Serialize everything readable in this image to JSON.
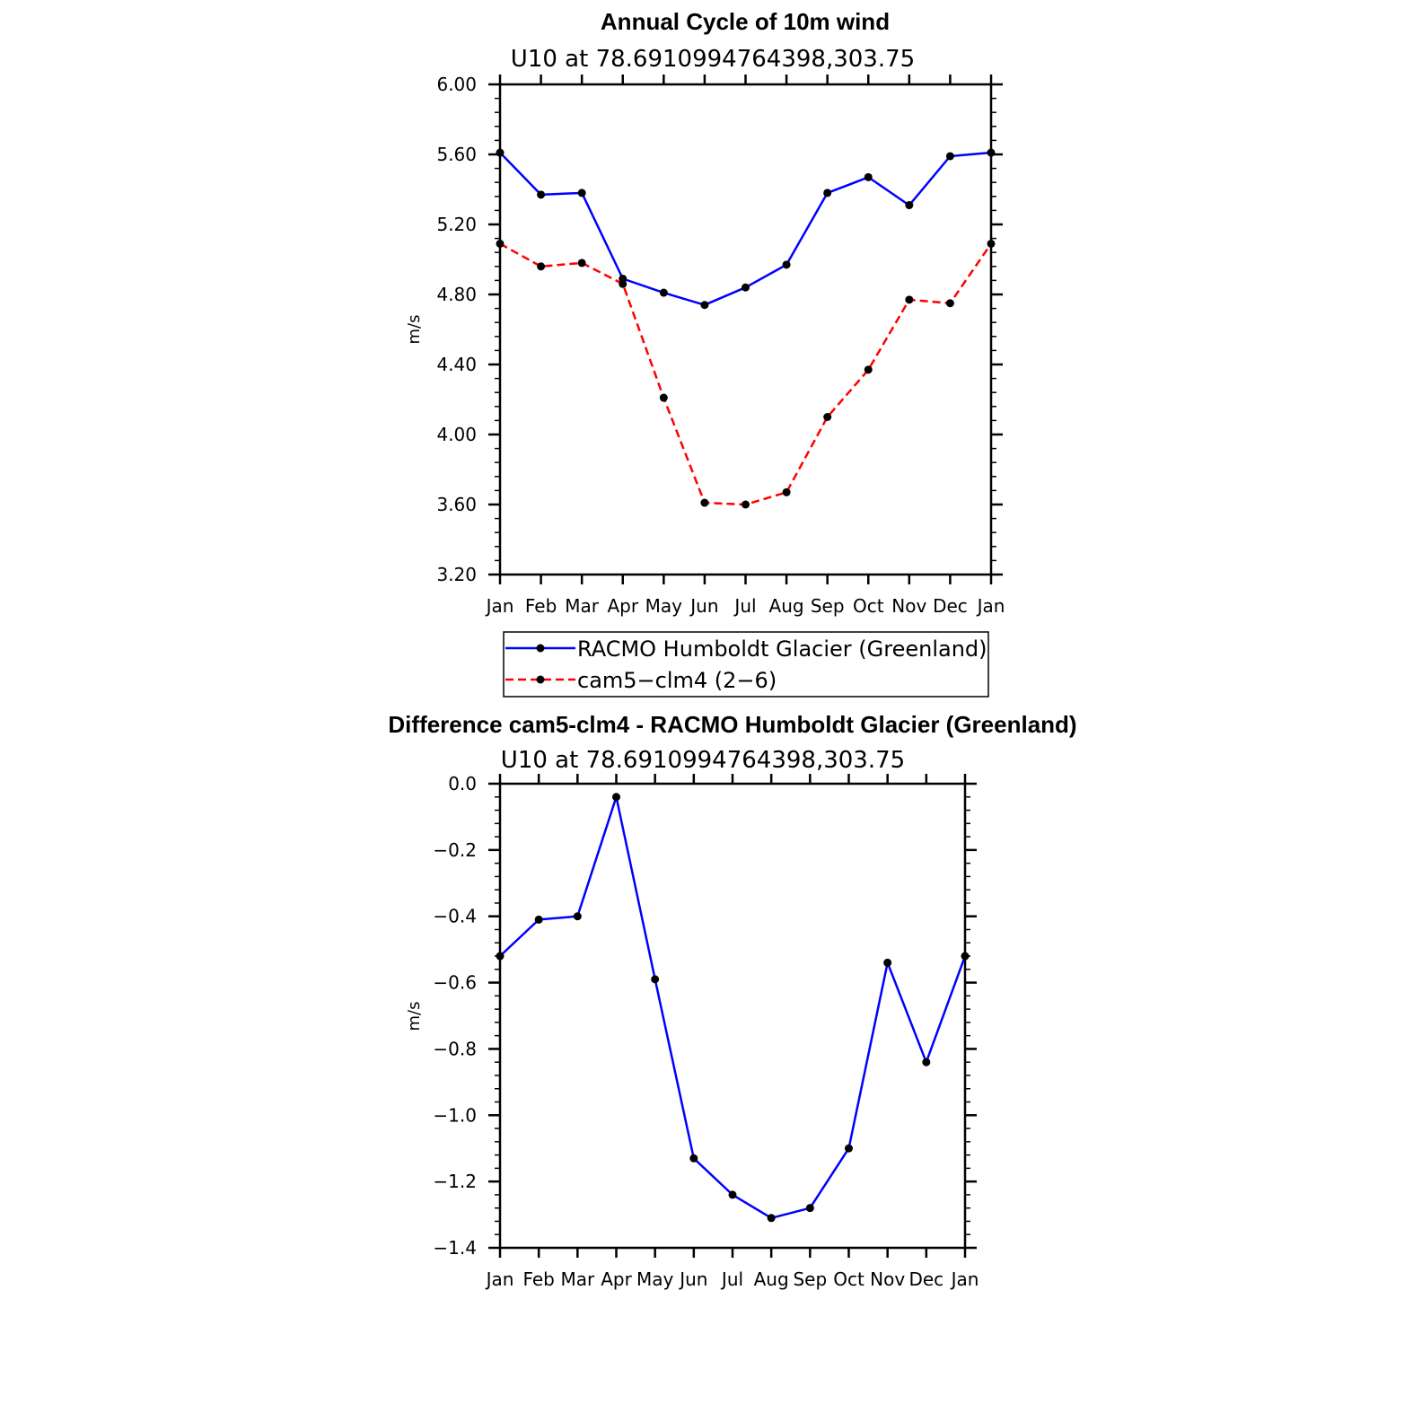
{
  "chart_data": [
    {
      "type": "line",
      "title": "Annual Cycle of 10m wind",
      "subtitle": "U10 at 78.6910994764398,303.75",
      "ylabel": "m/s",
      "xlabel": "",
      "categories": [
        "Jan",
        "Feb",
        "Mar",
        "Apr",
        "May",
        "Jun",
        "Jul",
        "Aug",
        "Sep",
        "Oct",
        "Nov",
        "Dec",
        "Jan"
      ],
      "ylim": [
        3.2,
        6.0
      ],
      "yticks": [
        "3.20",
        "3.60",
        "4.00",
        "4.40",
        "4.80",
        "5.20",
        "5.60",
        "6.00"
      ],
      "ytick_values": [
        3.2,
        3.6,
        4.0,
        4.4,
        4.8,
        5.2,
        5.6,
        6.0
      ],
      "series": [
        {
          "name": "RACMO Humboldt Glacier (Greenland)",
          "color": "#0000ff",
          "dash": "solid",
          "values": [
            5.61,
            5.37,
            5.38,
            4.89,
            4.81,
            4.74,
            4.84,
            4.97,
            5.38,
            5.47,
            5.31,
            5.59,
            5.61
          ]
        },
        {
          "name": "cam5−clm4 (2−6)",
          "color": "#ff0000",
          "dash": "dashed",
          "values": [
            5.09,
            4.96,
            4.98,
            4.86,
            4.21,
            3.61,
            3.6,
            3.67,
            4.1,
            4.37,
            4.77,
            4.75,
            5.09
          ]
        }
      ],
      "legend_position": "below"
    },
    {
      "type": "line",
      "title": "Difference cam5-clm4 - RACMO Humboldt Glacier (Greenland)",
      "subtitle": "U10 at 78.6910994764398,303.75",
      "ylabel": "m/s",
      "xlabel": "",
      "categories": [
        "Jan",
        "Feb",
        "Mar",
        "Apr",
        "May",
        "Jun",
        "Jul",
        "Aug",
        "Sep",
        "Oct",
        "Nov",
        "Dec",
        "Jan"
      ],
      "ylim": [
        -1.4,
        0.0
      ],
      "yticks": [
        "−1.4",
        "−1.2",
        "−1.0",
        "−0.8",
        "−0.6",
        "−0.4",
        "−0.2",
        "0.0"
      ],
      "ytick_values": [
        -1.4,
        -1.2,
        -1.0,
        -0.8,
        -0.6,
        -0.4,
        -0.2,
        0.0
      ],
      "series": [
        {
          "name": "Difference",
          "color": "#0000ff",
          "dash": "solid",
          "values": [
            -0.52,
            -0.41,
            -0.4,
            -0.04,
            -0.59,
            -1.13,
            -1.24,
            -1.31,
            -1.28,
            -1.1,
            -0.54,
            -0.84,
            -0.52
          ]
        }
      ]
    }
  ]
}
